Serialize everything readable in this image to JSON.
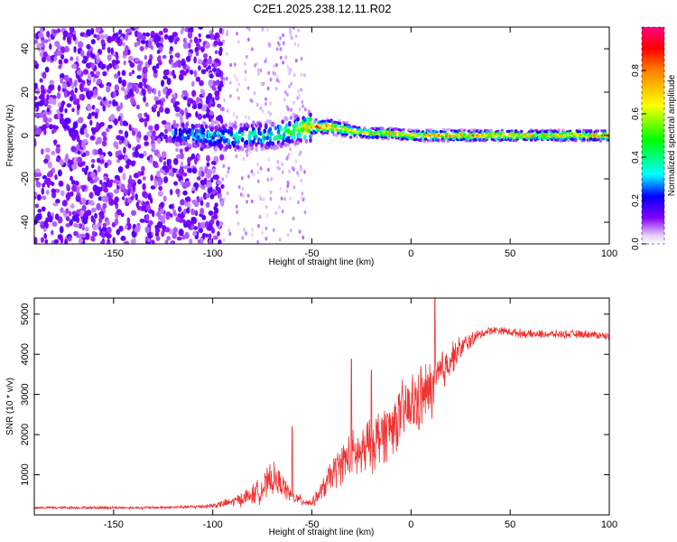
{
  "title": "C2E1.2025.238.12.11.R02",
  "chart_data": [
    {
      "type": "heatmap",
      "title": "C2E1.2025.238.12.11.R02",
      "xlabel": "Height of straight line (km)",
      "ylabel": "Frequency (Hz)",
      "xlim": [
        -190,
        100
      ],
      "ylim": [
        -50,
        50
      ],
      "x_ticks": [
        -150,
        -100,
        -50,
        0,
        50,
        100
      ],
      "y_ticks": [
        -40,
        -20,
        0,
        20,
        40
      ],
      "colorbar": {
        "label": "Normalized spectral amplitude",
        "range": [
          0,
          1
        ],
        "ticks": [
          0.0,
          0.2,
          0.4,
          0.6,
          0.8
        ],
        "tick_labels": [
          "0.0",
          "0.2",
          "0.4",
          "0.6",
          "0.8"
        ]
      },
      "dominant_frequency_track": {
        "x": [
          -120,
          -105,
          -90,
          -80,
          -70,
          -60,
          -50,
          -40,
          -30,
          -20,
          -10,
          0,
          20,
          40,
          60,
          80,
          100
        ],
        "y": [
          1,
          0,
          -1,
          0,
          0,
          2,
          4,
          4,
          2,
          1,
          1,
          0,
          0,
          0,
          0,
          0,
          0
        ],
        "amplitude": [
          0.3,
          0.35,
          0.4,
          0.45,
          0.45,
          0.55,
          0.9,
          0.9,
          0.7,
          0.75,
          0.8,
          0.85,
          0.9,
          0.85,
          0.75,
          0.8,
          0.85
        ]
      }
    },
    {
      "type": "line",
      "xlabel": "Height of straight line (km)",
      "ylabel": "SNR (10 * v/v)",
      "xlim": [
        -190,
        100
      ],
      "ylim": [
        0,
        5400
      ],
      "x_ticks": [
        -150,
        -100,
        -50,
        0,
        50,
        100
      ],
      "y_ticks": [
        1000,
        2000,
        3000,
        4000,
        5000
      ],
      "series": [
        {
          "name": "SNR",
          "color": "#f03232",
          "x": [
            -190,
            -170,
            -150,
            -130,
            -110,
            -100,
            -90,
            -80,
            -75,
            -70,
            -65,
            -60,
            -55,
            -50,
            -45,
            -40,
            -35,
            -30,
            -25,
            -20,
            -15,
            -10,
            -5,
            0,
            5,
            10,
            15,
            20,
            25,
            30,
            35,
            40,
            45,
            50,
            60,
            70,
            80,
            90,
            100
          ],
          "y": [
            180,
            180,
            180,
            180,
            200,
            230,
            320,
            500,
            650,
            900,
            750,
            450,
            350,
            300,
            600,
            1000,
            1300,
            1500,
            1500,
            1800,
            2000,
            2200,
            2500,
            2700,
            2900,
            3100,
            3500,
            3900,
            4150,
            4350,
            4500,
            4600,
            4600,
            4550,
            4500,
            4500,
            4500,
            4500,
            4450
          ],
          "noise": [
            40,
            40,
            40,
            40,
            50,
            80,
            150,
            300,
            400,
            500,
            350,
            200,
            150,
            120,
            300,
            500,
            600,
            700,
            800,
            900,
            900,
            900,
            900,
            1000,
            1000,
            900,
            800,
            500,
            350,
            250,
            150,
            120,
            120,
            120,
            120,
            120,
            120,
            120,
            120
          ],
          "spikes": [
            [
              -60,
              2200
            ],
            [
              -30,
              3880
            ],
            [
              -20,
              3600
            ],
            [
              12,
              5400
            ]
          ]
        }
      ]
    }
  ]
}
